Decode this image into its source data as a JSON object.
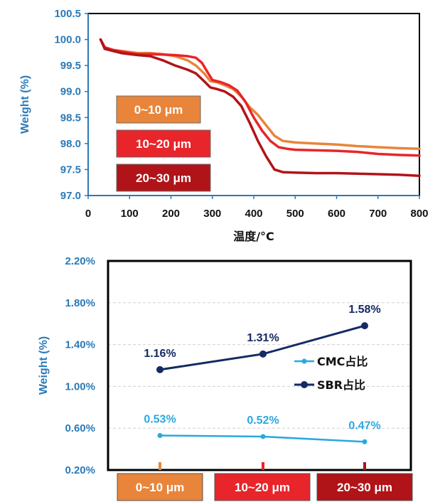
{
  "chart_data": [
    {
      "type": "line",
      "title": "",
      "xlabel": "温度/°C",
      "ylabel": "Weight (%)",
      "xlim": [
        0,
        800
      ],
      "ylim": [
        97.0,
        100.5
      ],
      "xticks": [
        "0",
        "100",
        "200",
        "300",
        "400",
        "500",
        "600",
        "700",
        "800"
      ],
      "yticks": [
        "97.0",
        "97.5",
        "98.0",
        "98.5",
        "99.0",
        "99.5",
        "100.0",
        "100.5"
      ],
      "legend_position": "left",
      "series": [
        {
          "name": "0~10 μm",
          "color": "#e8853a",
          "x": [
            30,
            40,
            60,
            80,
            100,
            120,
            150,
            180,
            210,
            240,
            260,
            280,
            295,
            310,
            330,
            350,
            370,
            390,
            410,
            430,
            450,
            470,
            500,
            550,
            600,
            650,
            700,
            750,
            800
          ],
          "y": [
            100.0,
            99.85,
            99.8,
            99.78,
            99.76,
            99.74,
            99.74,
            99.72,
            99.68,
            99.6,
            99.5,
            99.35,
            99.2,
            99.18,
            99.12,
            99.05,
            98.9,
            98.7,
            98.55,
            98.35,
            98.15,
            98.05,
            98.02,
            98.0,
            97.98,
            97.95,
            97.93,
            97.91,
            97.9
          ]
        },
        {
          "name": "10~20 μm",
          "color": "#e8252a",
          "x": [
            30,
            40,
            60,
            80,
            100,
            120,
            150,
            180,
            210,
            240,
            260,
            275,
            290,
            300,
            320,
            340,
            360,
            380,
            400,
            420,
            440,
            460,
            480,
            500,
            550,
            600,
            650,
            700,
            750,
            800
          ],
          "y": [
            100.0,
            99.85,
            99.8,
            99.77,
            99.74,
            99.72,
            99.72,
            99.71,
            99.7,
            99.68,
            99.65,
            99.55,
            99.35,
            99.22,
            99.18,
            99.12,
            99.02,
            98.8,
            98.5,
            98.25,
            98.05,
            97.93,
            97.9,
            97.88,
            97.87,
            97.86,
            97.84,
            97.8,
            97.78,
            97.77
          ]
        },
        {
          "name": "20~30 μm",
          "color": "#b01418",
          "x": [
            30,
            40,
            60,
            80,
            100,
            120,
            150,
            180,
            210,
            240,
            260,
            280,
            295,
            310,
            330,
            350,
            370,
            390,
            410,
            430,
            450,
            470,
            500,
            550,
            600,
            650,
            700,
            750,
            800
          ],
          "y": [
            100.0,
            99.82,
            99.78,
            99.74,
            99.72,
            99.7,
            99.68,
            99.6,
            99.5,
            99.42,
            99.35,
            99.2,
            99.08,
            99.05,
            99.0,
            98.9,
            98.72,
            98.4,
            98.05,
            97.75,
            97.5,
            97.45,
            97.44,
            97.43,
            97.43,
            97.42,
            97.41,
            97.4,
            97.38
          ]
        }
      ],
      "legend": [
        "0~10 μm",
        "10~20 μm",
        "20~30 μm"
      ],
      "legend_colors": [
        "#e8853a",
        "#e8252a",
        "#b01418"
      ]
    },
    {
      "type": "line",
      "title": "",
      "xlabel": "",
      "ylabel": "Weight (%)",
      "ylim": [
        0.2,
        2.2
      ],
      "yticks": [
        "0.20%",
        "0.60%",
        "1.00%",
        "1.40%",
        "1.80%",
        "2.20%"
      ],
      "categories": [
        "0~10 μm",
        "10~20 μm",
        "20~30 μm"
      ],
      "category_colors": [
        "#e8853a",
        "#e8252a",
        "#b01418"
      ],
      "legend_position": "right",
      "series": [
        {
          "name": "CMC占比",
          "color": "#2aa8e0",
          "values": [
            0.53,
            0.52,
            0.47
          ],
          "labels": [
            "0.53%",
            "0.52%",
            "0.47%"
          ]
        },
        {
          "name": "SBR占比",
          "color": "#142a63",
          "values": [
            1.16,
            1.31,
            1.58
          ],
          "labels": [
            "1.16%",
            "1.31%",
            "1.58%"
          ]
        }
      ]
    }
  ]
}
